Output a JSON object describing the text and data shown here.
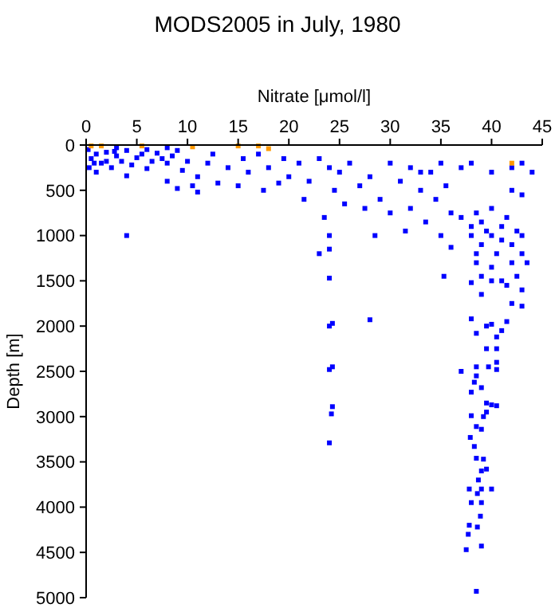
{
  "chart_data": {
    "type": "scatter",
    "title": "MODS2005 in July, 1980",
    "xlabel": "Nitrate [μmol/l]",
    "ylabel": "Depth [m]",
    "xlim": [
      0,
      45
    ],
    "xticks": [
      0,
      5,
      10,
      15,
      20,
      25,
      30,
      35,
      40,
      45
    ],
    "ylim": [
      5000,
      0
    ],
    "yticks": [
      0,
      500,
      1000,
      1500,
      2000,
      2500,
      3000,
      3500,
      4000,
      4500,
      5000
    ],
    "marker": "square",
    "grid": false,
    "series": [
      {
        "color": "#0000ff",
        "x": [
          0.2,
          0.5,
          1,
          1.5,
          2,
          2.5,
          3,
          3.5,
          4,
          4.5,
          5,
          5.5,
          6,
          6.5,
          7,
          7.5,
          8,
          8.5,
          9,
          9.5,
          10,
          0.3,
          1,
          2,
          3,
          4,
          6,
          8,
          0.8,
          2.8,
          10.5,
          11,
          12,
          12.5,
          13,
          14,
          15,
          15.5,
          16,
          17,
          17.5,
          18,
          19,
          19.5,
          8,
          9,
          11,
          4,
          20,
          21,
          21.5,
          22,
          23,
          23.5,
          24,
          24,
          24.5,
          25,
          25.5,
          26,
          27,
          27.5,
          28,
          28.5,
          29,
          30,
          30,
          23,
          24,
          24,
          24.3,
          24,
          24,
          24.3,
          24.2,
          24.3,
          24,
          28,
          31,
          32,
          32,
          33,
          33.5,
          34,
          34.5,
          35,
          35,
          35.5,
          36,
          36,
          35.3,
          31.5,
          33,
          37,
          38,
          40,
          42,
          43,
          44,
          43,
          42,
          37,
          38,
          38,
          38.5,
          39,
          39,
          39.5,
          40,
          40,
          40.5,
          41,
          41,
          41.5,
          42,
          42,
          42.5,
          43,
          43,
          43.5,
          38.5,
          39,
          40,
          41,
          42.5,
          43,
          38.5,
          38,
          39,
          40,
          41.5,
          42,
          43,
          41.5,
          40,
          39.5,
          38,
          38.5,
          40.5,
          41,
          39.5,
          40.5,
          38.5,
          39.7,
          40.5,
          37,
          40.5,
          38.5,
          38.3,
          38,
          39,
          39.5,
          39.5,
          40,
          40.5,
          38,
          39.2,
          38.5,
          39,
          37.9,
          38.3,
          38.5,
          39.2,
          39,
          39.5,
          38.7,
          37.8,
          39,
          40,
          38.6,
          38,
          39,
          38.9,
          37.8,
          38.6,
          37.7,
          39,
          37.5,
          38.5
        ],
        "values": [
          50,
          150,
          100,
          200,
          80,
          250,
          120,
          180,
          60,
          220,
          140,
          100,
          260,
          180,
          90,
          150,
          200,
          120,
          60,
          280,
          180,
          250,
          300,
          180,
          30,
          340,
          50,
          30,
          200,
          70,
          450,
          350,
          200,
          100,
          420,
          250,
          450,
          150,
          300,
          100,
          500,
          250,
          420,
          150,
          400,
          480,
          520,
          1000,
          350,
          200,
          600,
          400,
          150,
          800,
          250,
          1000,
          500,
          300,
          650,
          200,
          450,
          700,
          350,
          1000,
          600,
          200,
          750,
          1200,
          1150,
          1470,
          1970,
          2000,
          2480,
          2450,
          2970,
          2890,
          3290,
          1930,
          400,
          250,
          700,
          500,
          850,
          300,
          600,
          200,
          1000,
          450,
          750,
          1130,
          1450,
          950,
          300,
          250,
          200,
          300,
          250,
          200,
          300,
          550,
          500,
          800,
          900,
          1000,
          750,
          1100,
          850,
          950,
          1000,
          700,
          1200,
          900,
          1050,
          800,
          1100,
          1300,
          950,
          1000,
          1200,
          1300,
          1300,
          1450,
          1350,
          1500,
          1450,
          1600,
          1200,
          1520,
          1650,
          1500,
          1550,
          1750,
          1780,
          1950,
          1980,
          2000,
          1920,
          2080,
          2120,
          2050,
          2250,
          2250,
          2450,
          2450,
          2480,
          2500,
          2400,
          2550,
          2620,
          2730,
          2680,
          2850,
          2950,
          2870,
          2880,
          2990,
          3000,
          3110,
          3140,
          3230,
          3330,
          3460,
          3470,
          3600,
          3580,
          3700,
          3800,
          3800,
          3800,
          3850,
          3950,
          3950,
          4100,
          4200,
          4220,
          4300,
          4430,
          4470,
          4930
        ]
      },
      {
        "color": "#ff9900",
        "x": [
          0.5,
          1.5,
          5.5,
          10.5,
          15,
          17,
          18,
          42
        ],
        "values": [
          10,
          10,
          10,
          20,
          10,
          10,
          40,
          200
        ]
      }
    ]
  }
}
